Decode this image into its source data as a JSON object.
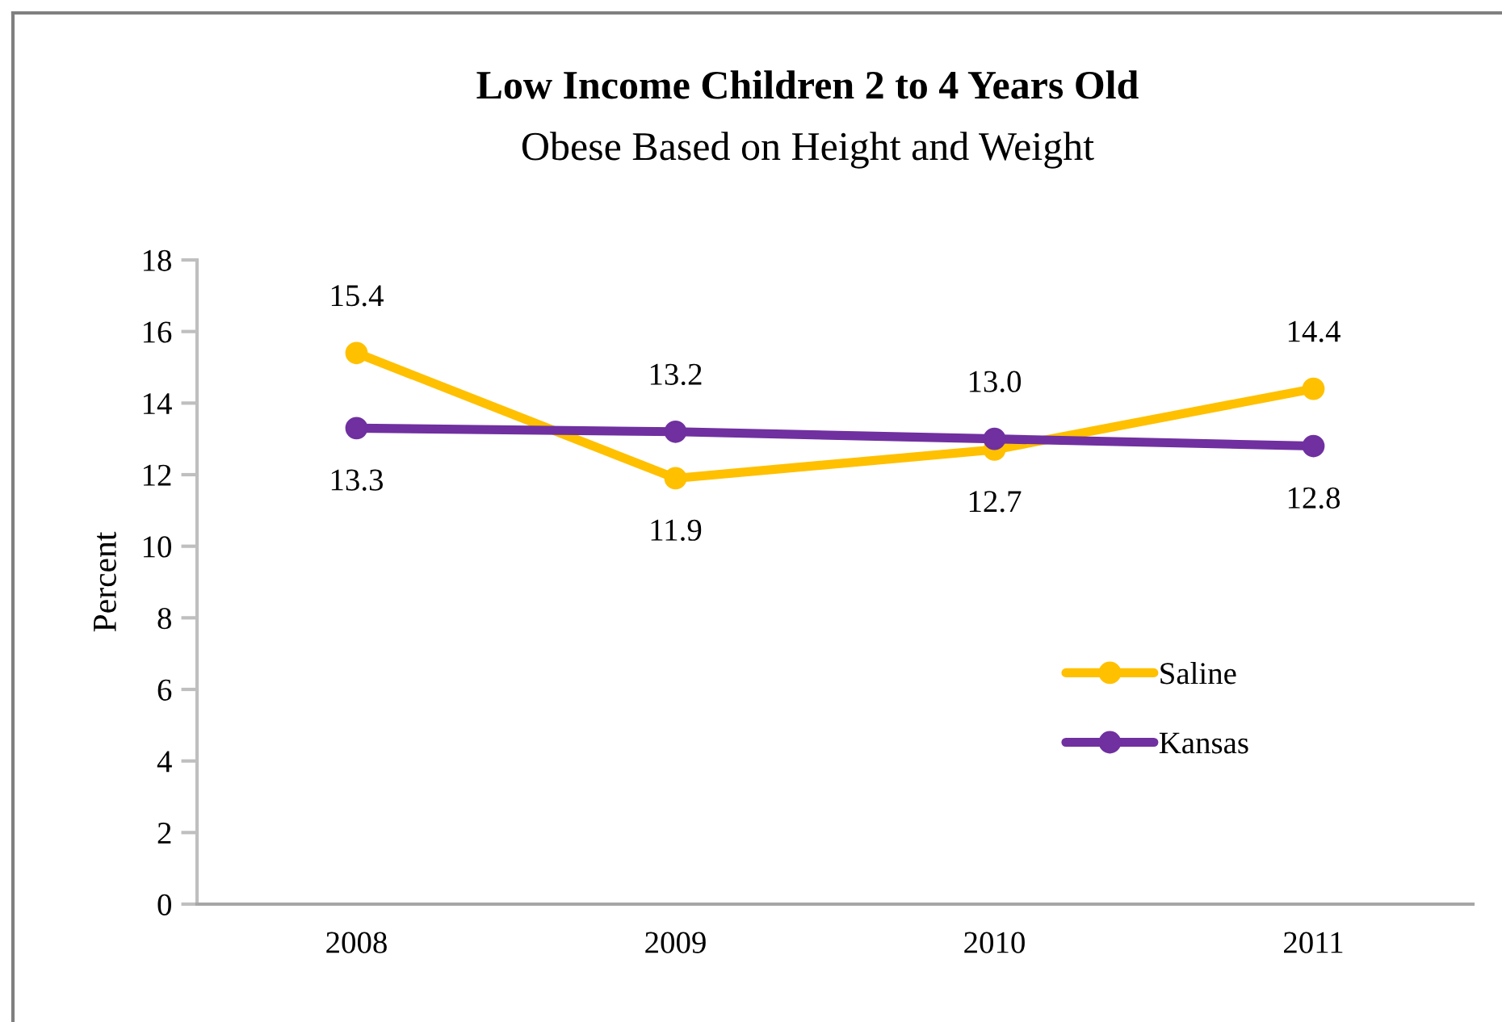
{
  "chart_data": {
    "type": "line",
    "title": "Low Income Children 2 to 4 Years Old",
    "subtitle": "Obese Based on Height and Weight",
    "ylabel": "Percent",
    "categories": [
      "2008",
      "2009",
      "2010",
      "2011"
    ],
    "series": [
      {
        "name": "Saline",
        "color": "#ffc000",
        "values": [
          15.4,
          11.9,
          12.7,
          14.4
        ],
        "value_labels": [
          "15.4",
          "11.9",
          "12.7",
          "14.4"
        ]
      },
      {
        "name": "Kansas",
        "color": "#7030a0",
        "values": [
          13.3,
          13.2,
          13.0,
          12.8
        ],
        "value_labels": [
          "13.3",
          "13.2",
          "13.0",
          "12.8"
        ]
      }
    ],
    "ylim": [
      0,
      18
    ],
    "yticks": [
      0,
      2,
      4,
      6,
      8,
      10,
      12,
      14,
      16,
      18
    ],
    "grid": false,
    "legend": "right",
    "marker": "circle",
    "line_style": "solid"
  }
}
